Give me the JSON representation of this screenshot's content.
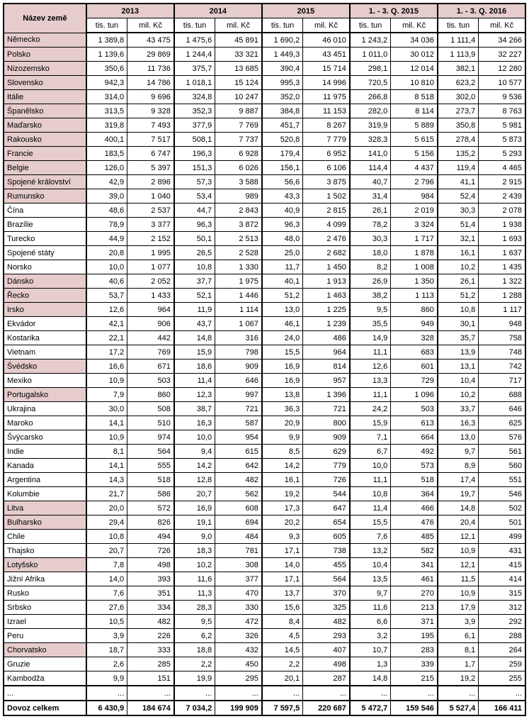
{
  "header": {
    "country_label": "Název země",
    "years": [
      "2013",
      "2014",
      "2015",
      "1. - 3. Q. 2015",
      "1. - 3. Q. 2016"
    ],
    "sub_tun": "tis. tun",
    "sub_kc": "mil. Kč"
  },
  "ellipsis": "...",
  "total_label": "Dovoz celkem",
  "highlight_color": "#e6cccc",
  "rows": [
    {
      "c": "Německo",
      "hl": true,
      "v": [
        "1 389,8",
        "43 475",
        "1 475,6",
        "45 891",
        "1 690,2",
        "46 010",
        "1 243,2",
        "34 036",
        "1 111,4",
        "34 266"
      ]
    },
    {
      "c": "Polsko",
      "hl": true,
      "v": [
        "1 139,6",
        "29 869",
        "1 244,4",
        "33 321",
        "1 449,3",
        "43 451",
        "1 011,0",
        "30 012",
        "1 113,9",
        "32 227"
      ]
    },
    {
      "c": "Nizozemsko",
      "hl": true,
      "v": [
        "350,6",
        "11 736",
        "375,7",
        "13 685",
        "390,4",
        "15 714",
        "298,1",
        "12 014",
        "382,1",
        "12 280"
      ]
    },
    {
      "c": "Slovensko",
      "hl": true,
      "v": [
        "942,3",
        "14 786",
        "1 018,1",
        "15 124",
        "995,3",
        "14 996",
        "720,5",
        "10 810",
        "623,2",
        "10 577"
      ]
    },
    {
      "c": "Itálie",
      "hl": true,
      "v": [
        "314,0",
        "9 696",
        "324,8",
        "10 247",
        "352,0",
        "11 975",
        "266,8",
        "8 518",
        "302,0",
        "9 536"
      ]
    },
    {
      "c": "Španělsko",
      "hl": true,
      "v": [
        "313,5",
        "9 328",
        "352,3",
        "9 887",
        "384,8",
        "11 153",
        "282,0",
        "8 114",
        "273,7",
        "8 763"
      ]
    },
    {
      "c": "Maďarsko",
      "hl": true,
      "v": [
        "319,8",
        "7 493",
        "377,9",
        "7 769",
        "451,7",
        "8 267",
        "319,9",
        "5 889",
        "350,8",
        "5 981"
      ]
    },
    {
      "c": "Rakousko",
      "hl": true,
      "v": [
        "400,1",
        "7 517",
        "508,1",
        "7 737",
        "520,8",
        "7 779",
        "328,3",
        "5 615",
        "278,4",
        "5 873"
      ]
    },
    {
      "c": "Francie",
      "hl": true,
      "v": [
        "183,5",
        "6 747",
        "196,3",
        "6 928",
        "179,4",
        "6 952",
        "141,0",
        "5 156",
        "135,2",
        "5 293"
      ]
    },
    {
      "c": "Belgie",
      "hl": true,
      "v": [
        "126,0",
        "5 397",
        "151,3",
        "6 026",
        "156,1",
        "6 106",
        "114,4",
        "4 437",
        "119,4",
        "4 465"
      ]
    },
    {
      "c": "Spojené království",
      "hl": true,
      "v": [
        "42,9",
        "2 896",
        "57,3",
        "3 588",
        "56,6",
        "3 875",
        "40,7",
        "2 796",
        "41,1",
        "2 915"
      ]
    },
    {
      "c": "Rumunsko",
      "hl": true,
      "v": [
        "39,0",
        "1 040",
        "53,4",
        "989",
        "43,3",
        "1 502",
        "31,4",
        "984",
        "52,4",
        "2 439"
      ]
    },
    {
      "c": "Čína",
      "hl": false,
      "v": [
        "48,6",
        "2 537",
        "44,7",
        "2 843",
        "40,9",
        "2 815",
        "26,1",
        "2 019",
        "30,3",
        "2 078"
      ]
    },
    {
      "c": "Brazílie",
      "hl": false,
      "v": [
        "78,9",
        "3 377",
        "96,3",
        "3 872",
        "96,3",
        "4 099",
        "78,2",
        "3 324",
        "51,4",
        "1 938"
      ]
    },
    {
      "c": "Turecko",
      "hl": false,
      "v": [
        "44,9",
        "2 152",
        "50,1",
        "2 513",
        "48,0",
        "2 476",
        "30,3",
        "1 717",
        "32,1",
        "1 693"
      ]
    },
    {
      "c": "Spojené státy",
      "hl": false,
      "v": [
        "20,8",
        "1 995",
        "26,5",
        "2 528",
        "25,0",
        "2 682",
        "18,0",
        "1 878",
        "16,1",
        "1 637"
      ]
    },
    {
      "c": "Norsko",
      "hl": false,
      "v": [
        "10,0",
        "1 077",
        "10,8",
        "1 330",
        "11,7",
        "1 450",
        "8,2",
        "1 008",
        "10,2",
        "1 435"
      ]
    },
    {
      "c": "Dánsko",
      "hl": true,
      "v": [
        "40,6",
        "2 052",
        "37,7",
        "1 975",
        "40,1",
        "1 913",
        "26,9",
        "1 350",
        "26,1",
        "1 322"
      ]
    },
    {
      "c": "Řecko",
      "hl": true,
      "v": [
        "53,7",
        "1 433",
        "52,1",
        "1 446",
        "51,2",
        "1 463",
        "38,2",
        "1 113",
        "51,2",
        "1 288"
      ]
    },
    {
      "c": "Irsko",
      "hl": true,
      "v": [
        "12,6",
        "964",
        "11,9",
        "1 114",
        "13,0",
        "1 225",
        "9,5",
        "860",
        "10,8",
        "1 117"
      ]
    },
    {
      "c": "Ekvádor",
      "hl": false,
      "v": [
        "42,1",
        "906",
        "43,7",
        "1 067",
        "46,1",
        "1 239",
        "35,5",
        "949",
        "30,1",
        "948"
      ]
    },
    {
      "c": "Kostarika",
      "hl": false,
      "v": [
        "22,1",
        "442",
        "14,8",
        "316",
        "24,0",
        "486",
        "14,9",
        "328",
        "35,7",
        "758"
      ]
    },
    {
      "c": "Vietnam",
      "hl": false,
      "v": [
        "17,2",
        "769",
        "15,9",
        "798",
        "15,5",
        "964",
        "11,1",
        "683",
        "13,9",
        "748"
      ]
    },
    {
      "c": "Švédsko",
      "hl": true,
      "v": [
        "16,6",
        "671",
        "18,6",
        "909",
        "16,9",
        "814",
        "12,6",
        "601",
        "13,1",
        "742"
      ]
    },
    {
      "c": "Mexiko",
      "hl": false,
      "v": [
        "10,9",
        "503",
        "11,4",
        "646",
        "16,9",
        "957",
        "13,3",
        "729",
        "10,4",
        "717"
      ]
    },
    {
      "c": "Portugalsko",
      "hl": true,
      "v": [
        "7,9",
        "860",
        "12,3",
        "997",
        "13,8",
        "1 396",
        "11,1",
        "1 096",
        "10,2",
        "688"
      ]
    },
    {
      "c": "Ukrajina",
      "hl": false,
      "v": [
        "30,0",
        "508",
        "38,7",
        "721",
        "36,3",
        "721",
        "24,2",
        "503",
        "33,7",
        "646"
      ]
    },
    {
      "c": "Maroko",
      "hl": false,
      "v": [
        "14,1",
        "510",
        "16,3",
        "587",
        "20,9",
        "800",
        "15,9",
        "613",
        "16,3",
        "625"
      ]
    },
    {
      "c": "Švýcarsko",
      "hl": false,
      "v": [
        "10,9",
        "974",
        "10,0",
        "954",
        "9,9",
        "909",
        "7,1",
        "664",
        "13,0",
        "576"
      ]
    },
    {
      "c": "Indie",
      "hl": false,
      "v": [
        "8,1",
        "564",
        "9,4",
        "615",
        "8,5",
        "629",
        "6,7",
        "492",
        "9,7",
        "561"
      ]
    },
    {
      "c": "Kanada",
      "hl": false,
      "v": [
        "14,1",
        "555",
        "14,2",
        "642",
        "14,2",
        "779",
        "10,0",
        "573",
        "8,9",
        "560"
      ]
    },
    {
      "c": "Argentina",
      "hl": false,
      "v": [
        "14,3",
        "518",
        "12,8",
        "482",
        "16,1",
        "726",
        "11,1",
        "518",
        "17,4",
        "551"
      ]
    },
    {
      "c": "Kolumbie",
      "hl": false,
      "v": [
        "21,7",
        "586",
        "20,7",
        "562",
        "19,2",
        "544",
        "10,8",
        "364",
        "19,7",
        "546"
      ]
    },
    {
      "c": "Litva",
      "hl": true,
      "v": [
        "20,0",
        "572",
        "16,9",
        "608",
        "17,3",
        "647",
        "11,4",
        "466",
        "14,8",
        "502"
      ]
    },
    {
      "c": "Bulharsko",
      "hl": true,
      "v": [
        "29,4",
        "826",
        "19,1",
        "694",
        "20,2",
        "654",
        "15,5",
        "476",
        "20,4",
        "501"
      ]
    },
    {
      "c": "Chile",
      "hl": false,
      "v": [
        "10,8",
        "494",
        "9,0",
        "484",
        "9,3",
        "605",
        "7,6",
        "485",
        "12,1",
        "499"
      ]
    },
    {
      "c": "Thajsko",
      "hl": false,
      "v": [
        "20,7",
        "726",
        "18,3",
        "781",
        "17,1",
        "738",
        "13,2",
        "582",
        "10,9",
        "431"
      ]
    },
    {
      "c": "Lotyšsko",
      "hl": true,
      "v": [
        "7,8",
        "498",
        "10,2",
        "308",
        "14,0",
        "455",
        "10,4",
        "341",
        "12,1",
        "415"
      ]
    },
    {
      "c": "Jižní Afrika",
      "hl": false,
      "v": [
        "14,0",
        "393",
        "11,6",
        "377",
        "17,1",
        "564",
        "13,5",
        "461",
        "11,5",
        "414"
      ]
    },
    {
      "c": "Rusko",
      "hl": false,
      "v": [
        "7,6",
        "351",
        "11,3",
        "470",
        "13,7",
        "370",
        "9,7",
        "270",
        "10,9",
        "315"
      ]
    },
    {
      "c": "Srbsko",
      "hl": false,
      "v": [
        "27,6",
        "334",
        "28,3",
        "330",
        "15,6",
        "325",
        "11,6",
        "213",
        "17,9",
        "312"
      ]
    },
    {
      "c": "Izrael",
      "hl": false,
      "v": [
        "10,5",
        "482",
        "9,5",
        "472",
        "8,4",
        "482",
        "6,6",
        "371",
        "3,9",
        "292"
      ]
    },
    {
      "c": "Peru",
      "hl": false,
      "v": [
        "3,9",
        "226",
        "6,2",
        "326",
        "4,5",
        "293",
        "3,2",
        "195",
        "6,1",
        "288"
      ]
    },
    {
      "c": "Chorvatsko",
      "hl": true,
      "v": [
        "18,7",
        "333",
        "18,8",
        "432",
        "14,5",
        "407",
        "10,7",
        "283",
        "8,1",
        "264"
      ]
    },
    {
      "c": "Gruzie",
      "hl": false,
      "v": [
        "2,6",
        "285",
        "2,2",
        "450",
        "2,2",
        "498",
        "1,3",
        "339",
        "1,7",
        "259"
      ]
    },
    {
      "c": "Kambodža",
      "hl": false,
      "v": [
        "9,9",
        "151",
        "19,9",
        "295",
        "20,1",
        "287",
        "14,8",
        "215",
        "19,2",
        "255"
      ]
    }
  ],
  "total": [
    "6 430,9",
    "184 674",
    "7 034,2",
    "199 909",
    "7 597,5",
    "220 687",
    "5 472,7",
    "159 546",
    "5 527,4",
    "166 411"
  ]
}
